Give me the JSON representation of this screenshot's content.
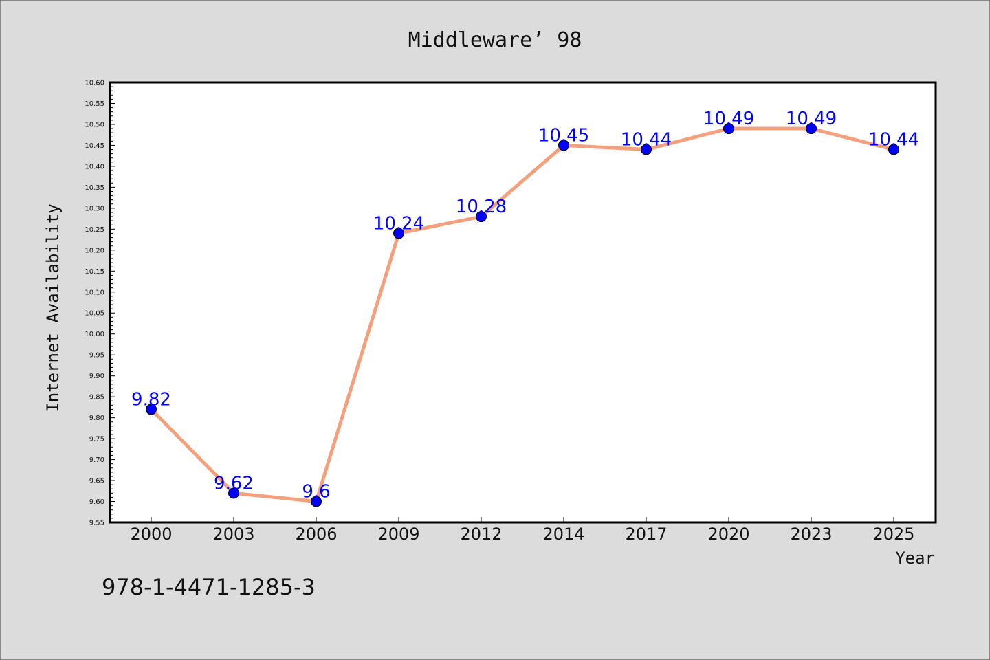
{
  "chart_data": {
    "type": "line",
    "title": "Middleware’ 98",
    "xlabel": "Year",
    "ylabel": "Internet Availability",
    "categories": [
      "2000",
      "2003",
      "2006",
      "2009",
      "2012",
      "2014",
      "2017",
      "2020",
      "2023",
      "2025"
    ],
    "series": [
      {
        "values": [
          9.82,
          9.62,
          9.6,
          10.24,
          10.28,
          10.45,
          10.44,
          10.49,
          10.49,
          10.44
        ],
        "data_labels": [
          "9.82",
          "9.62",
          "9.6",
          "10.24",
          "10.28",
          "10.45",
          "10.44",
          "10.49",
          "10.49",
          "10.44"
        ],
        "line_color": "#f4a07c",
        "marker_color": "#0000ff"
      }
    ],
    "ylim": [
      9.55,
      10.6
    ],
    "yticks": [
      "9.55",
      "9.60",
      "9.65",
      "9.70",
      "9.75",
      "9.80",
      "9.85",
      "9.90",
      "9.95",
      "10.00",
      "10.05",
      "10.10",
      "10.15",
      "10.20",
      "10.25",
      "10.30",
      "10.35",
      "10.40",
      "10.45",
      "10.50",
      "10.55",
      "10.60"
    ],
    "grid": false,
    "legend": "none",
    "label_color": "#0000ff",
    "background": "#dcdcdc",
    "plot_background": "#ffffff"
  },
  "footer": {
    "isbn": "978-1-4471-1285-3"
  }
}
